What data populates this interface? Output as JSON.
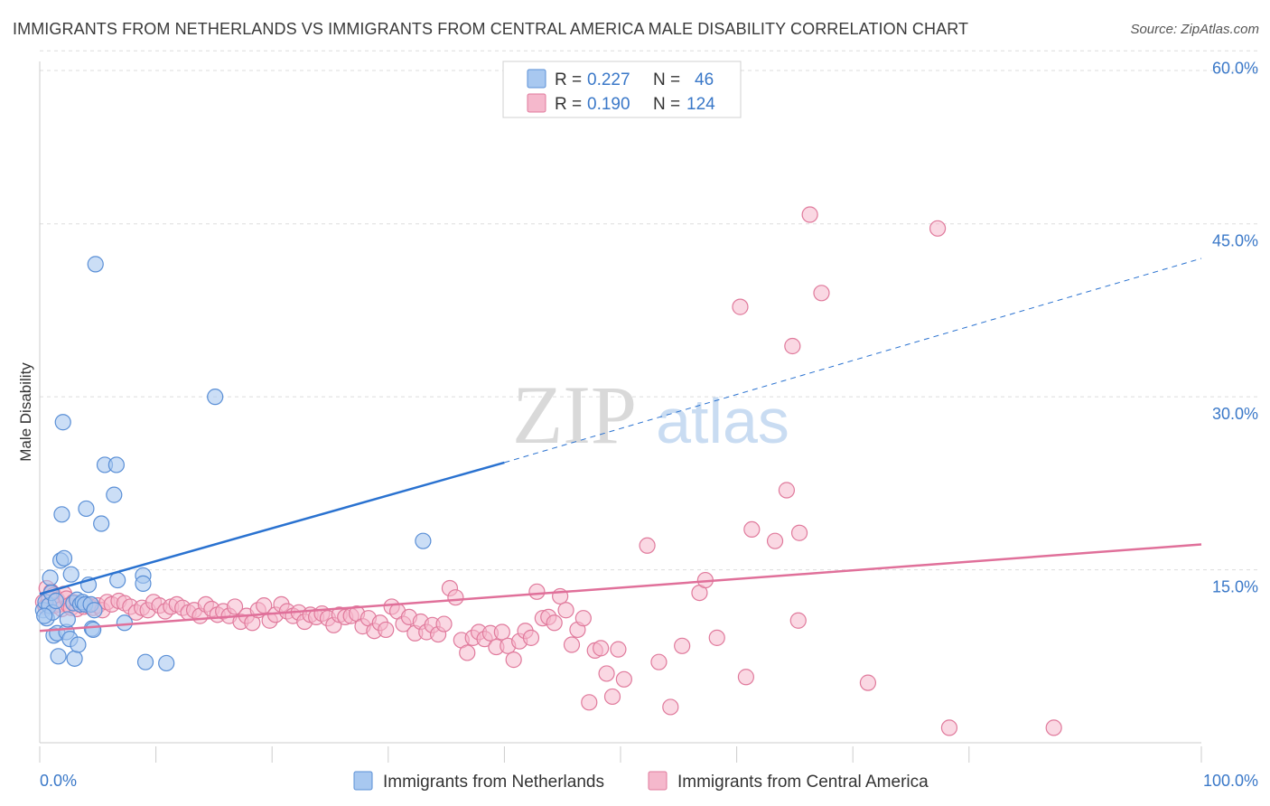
{
  "header": {
    "title": "IMMIGRANTS FROM NETHERLANDS VS IMMIGRANTS FROM CENTRAL AMERICA MALE DISABILITY CORRELATION CHART",
    "source": "Source: ZipAtlas.com"
  },
  "watermark": {
    "zip": "ZIP",
    "atlas": "atlas"
  },
  "colors": {
    "netherlands_fill": "#a8c8f0",
    "netherlands_stroke": "#5a8fd6",
    "netherlands_line": "#2a72d0",
    "central_fill": "#f5b8cc",
    "central_stroke": "#e07a9c",
    "central_line": "#e0709a",
    "axis_text": "#3a78c8",
    "grid": "#dddddd"
  },
  "legend": {
    "rows": [
      {
        "r_label": "R = ",
        "r_value": "0.227",
        "n_label": "N = ",
        "n_value": "46"
      },
      {
        "r_label": "R = ",
        "r_value": "0.190",
        "n_label": "N = ",
        "n_value": "124"
      }
    ]
  },
  "chart_data": {
    "type": "scatter",
    "title": "IMMIGRANTS FROM NETHERLANDS VS IMMIGRANTS FROM CENTRAL AMERICA MALE DISABILITY CORRELATION CHART",
    "xlabel": "",
    "ylabel": "Male Disability",
    "xlim": [
      0,
      100
    ],
    "ylim": [
      0,
      60
    ],
    "x_tick_labels": [
      "0.0%",
      "100.0%"
    ],
    "y_ticks": [
      15,
      30,
      45,
      60
    ],
    "y_tick_labels": [
      "15.0%",
      "30.0%",
      "45.0%",
      "60.0%"
    ],
    "grid": true,
    "legend_position": "top-center",
    "series": [
      {
        "name": "Immigrants from Netherlands",
        "r": 0.227,
        "n": 46,
        "trend": {
          "x0": 0,
          "y0": 12.9,
          "x1": 40,
          "y1": 24.3,
          "dashed_to_x": 100,
          "dashed_to_y": 42.0
        },
        "points": [
          [
            0.3,
            11.5
          ],
          [
            0.5,
            12.2
          ],
          [
            0.6,
            10.8
          ],
          [
            0.8,
            11.9
          ],
          [
            0.9,
            14.3
          ],
          [
            1.0,
            13.0
          ],
          [
            1.1,
            11.3
          ],
          [
            1.2,
            9.3
          ],
          [
            1.4,
            12.3
          ],
          [
            1.5,
            9.5
          ],
          [
            1.6,
            7.5
          ],
          [
            1.8,
            15.8
          ],
          [
            1.9,
            19.8
          ],
          [
            2.0,
            27.8
          ],
          [
            2.1,
            16.0
          ],
          [
            2.3,
            9.6
          ],
          [
            2.4,
            10.7
          ],
          [
            2.6,
            9.0
          ],
          [
            2.7,
            14.6
          ],
          [
            2.9,
            12.1
          ],
          [
            3.0,
            7.3
          ],
          [
            3.2,
            12.4
          ],
          [
            3.3,
            8.5
          ],
          [
            3.5,
            12.0
          ],
          [
            3.7,
            12.2
          ],
          [
            3.9,
            12.0
          ],
          [
            4.0,
            20.3
          ],
          [
            4.2,
            13.7
          ],
          [
            4.4,
            12.0
          ],
          [
            4.5,
            9.9
          ],
          [
            4.6,
            9.8
          ],
          [
            4.7,
            11.5
          ],
          [
            4.8,
            41.5
          ],
          [
            5.3,
            19.0
          ],
          [
            5.6,
            24.1
          ],
          [
            6.4,
            21.5
          ],
          [
            6.6,
            24.1
          ],
          [
            6.7,
            14.1
          ],
          [
            7.3,
            10.4
          ],
          [
            8.9,
            14.5
          ],
          [
            8.9,
            13.8
          ],
          [
            9.1,
            7.0
          ],
          [
            10.9,
            6.9
          ],
          [
            15.1,
            30.0
          ],
          [
            33.0,
            17.5
          ],
          [
            0.4,
            11.0
          ]
        ]
      },
      {
        "name": "Immigrants from Central America",
        "r": 0.19,
        "n": 124,
        "trend": {
          "x0": 0,
          "y0": 9.7,
          "x1": 100,
          "y1": 17.2
        },
        "points": [
          [
            0.3,
            12.2
          ],
          [
            0.5,
            11.8
          ],
          [
            0.6,
            13.4
          ],
          [
            0.8,
            12.5
          ],
          [
            1.0,
            13.1
          ],
          [
            1.2,
            12.8
          ],
          [
            1.3,
            11.9
          ],
          [
            1.5,
            12.4
          ],
          [
            1.7,
            12.0
          ],
          [
            1.9,
            11.6
          ],
          [
            2.1,
            12.9
          ],
          [
            2.3,
            12.5
          ],
          [
            2.5,
            11.9
          ],
          [
            2.7,
            11.7
          ],
          [
            2.9,
            12.2
          ],
          [
            3.2,
            11.6
          ],
          [
            3.5,
            12.0
          ],
          [
            3.8,
            11.8
          ],
          [
            4.2,
            11.9
          ],
          [
            4.6,
            11.7
          ],
          [
            5.0,
            11.9
          ],
          [
            5.4,
            11.5
          ],
          [
            5.8,
            12.2
          ],
          [
            6.2,
            12.0
          ],
          [
            6.8,
            12.3
          ],
          [
            7.3,
            12.1
          ],
          [
            7.8,
            11.8
          ],
          [
            8.3,
            11.3
          ],
          [
            8.8,
            11.7
          ],
          [
            9.3,
            11.5
          ],
          [
            9.8,
            12.2
          ],
          [
            10.3,
            11.9
          ],
          [
            10.8,
            11.4
          ],
          [
            11.3,
            11.8
          ],
          [
            11.8,
            12.0
          ],
          [
            12.3,
            11.7
          ],
          [
            12.8,
            11.3
          ],
          [
            13.3,
            11.5
          ],
          [
            13.8,
            11.0
          ],
          [
            14.3,
            12.0
          ],
          [
            14.8,
            11.6
          ],
          [
            15.3,
            11.1
          ],
          [
            15.8,
            11.4
          ],
          [
            16.3,
            11.0
          ],
          [
            16.8,
            11.8
          ],
          [
            17.3,
            10.5
          ],
          [
            17.8,
            11.0
          ],
          [
            18.3,
            10.4
          ],
          [
            18.8,
            11.5
          ],
          [
            19.3,
            11.9
          ],
          [
            19.8,
            10.6
          ],
          [
            20.3,
            11.1
          ],
          [
            20.8,
            12.0
          ],
          [
            21.3,
            11.4
          ],
          [
            21.8,
            11.0
          ],
          [
            22.3,
            11.3
          ],
          [
            22.8,
            10.5
          ],
          [
            23.3,
            11.1
          ],
          [
            23.8,
            10.9
          ],
          [
            24.3,
            11.2
          ],
          [
            24.8,
            10.8
          ],
          [
            25.3,
            10.2
          ],
          [
            25.8,
            11.1
          ],
          [
            26.3,
            10.9
          ],
          [
            26.8,
            11.0
          ],
          [
            27.3,
            11.2
          ],
          [
            27.8,
            10.1
          ],
          [
            28.3,
            10.8
          ],
          [
            28.8,
            9.7
          ],
          [
            29.3,
            10.4
          ],
          [
            29.8,
            9.8
          ],
          [
            30.3,
            11.8
          ],
          [
            30.8,
            11.4
          ],
          [
            31.3,
            10.3
          ],
          [
            31.8,
            10.9
          ],
          [
            32.3,
            9.5
          ],
          [
            32.8,
            10.5
          ],
          [
            33.3,
            9.6
          ],
          [
            33.8,
            10.2
          ],
          [
            34.3,
            9.4
          ],
          [
            34.8,
            10.3
          ],
          [
            35.3,
            13.4
          ],
          [
            35.8,
            12.6
          ],
          [
            36.3,
            8.9
          ],
          [
            36.8,
            7.8
          ],
          [
            37.3,
            9.1
          ],
          [
            37.8,
            9.6
          ],
          [
            38.3,
            9.0
          ],
          [
            38.8,
            9.5
          ],
          [
            39.3,
            8.3
          ],
          [
            39.8,
            9.6
          ],
          [
            40.3,
            8.4
          ],
          [
            40.8,
            7.2
          ],
          [
            41.3,
            8.8
          ],
          [
            41.8,
            9.7
          ],
          [
            42.3,
            9.1
          ],
          [
            42.8,
            13.1
          ],
          [
            43.3,
            10.8
          ],
          [
            43.8,
            10.9
          ],
          [
            44.3,
            10.4
          ],
          [
            44.8,
            12.7
          ],
          [
            45.3,
            11.5
          ],
          [
            45.8,
            8.5
          ],
          [
            46.3,
            9.8
          ],
          [
            46.8,
            10.8
          ],
          [
            47.3,
            3.5
          ],
          [
            47.8,
            8.0
          ],
          [
            48.3,
            8.2
          ],
          [
            48.8,
            6.0
          ],
          [
            49.3,
            4.0
          ],
          [
            49.8,
            8.1
          ],
          [
            50.3,
            5.5
          ],
          [
            52.3,
            17.1
          ],
          [
            53.3,
            7.0
          ],
          [
            54.3,
            3.1
          ],
          [
            55.3,
            8.4
          ],
          [
            56.8,
            13.0
          ],
          [
            57.3,
            14.1
          ],
          [
            58.3,
            9.1
          ],
          [
            60.3,
            37.8
          ],
          [
            60.8,
            5.7
          ],
          [
            61.3,
            18.5
          ],
          [
            63.3,
            17.5
          ],
          [
            64.3,
            21.9
          ],
          [
            64.8,
            34.4
          ],
          [
            65.3,
            10.6
          ],
          [
            65.4,
            18.2
          ],
          [
            66.3,
            45.8
          ],
          [
            67.3,
            39.0
          ],
          [
            71.3,
            5.2
          ],
          [
            77.3,
            44.6
          ],
          [
            78.3,
            1.3
          ],
          [
            87.3,
            1.3
          ]
        ]
      }
    ]
  },
  "bottom_legend": {
    "items": [
      {
        "label": "Immigrants from Netherlands"
      },
      {
        "label": "Immigrants from Central America"
      }
    ]
  }
}
